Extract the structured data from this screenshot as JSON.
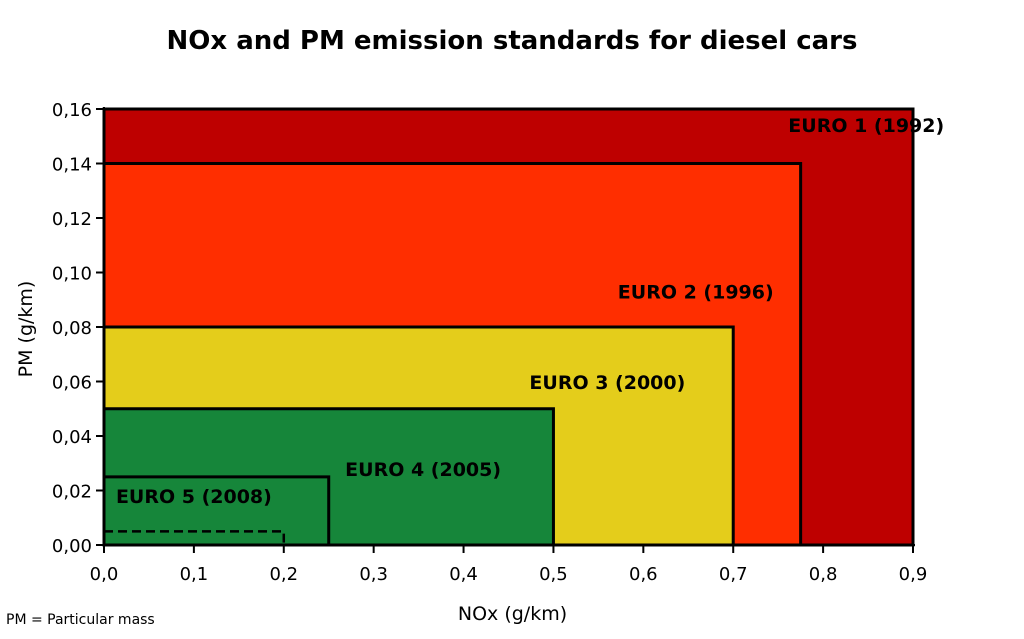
{
  "title": "NOx and PM emission standards for diesel cars",
  "footnote": "PM = Particular mass",
  "chart_data": {
    "type": "area",
    "title": "NOx and PM emission standards for diesel cars",
    "xlabel": "NOx (g/km)",
    "ylabel": "PM (g/km)",
    "xlim": [
      0,
      0.9
    ],
    "ylim": [
      0,
      0.16
    ],
    "x_ticks": [
      "0,0",
      "0,1",
      "0,2",
      "0,3",
      "0,4",
      "0,5",
      "0,6",
      "0,7",
      "0,8",
      "0,9"
    ],
    "y_ticks": [
      "0,00",
      "0,02",
      "0,04",
      "0,06",
      "0,08",
      "0,10",
      "0,12",
      "0,14",
      "0,16"
    ],
    "grid": false,
    "standards": [
      {
        "name": "EURO 1 (1992)",
        "nox": 0.9,
        "pm": 0.16,
        "color": "#BE0000"
      },
      {
        "name": "EURO 2 (1996)",
        "nox": 0.775,
        "pm": 0.14,
        "color": "#FF2E00"
      },
      {
        "name": "EURO 3 (2000)",
        "nox": 0.7,
        "pm": 0.08,
        "color": "#E4CD1B"
      },
      {
        "name": "EURO 4 (2005)",
        "nox": 0.5,
        "pm": 0.05,
        "color": "#16863A"
      },
      {
        "name": "EURO 5 (2008)",
        "nox": 0.25,
        "pm": 0.025,
        "color": "#16863A"
      }
    ],
    "dashed_limit": {
      "nox": 0.2,
      "pm": 0.005
    }
  }
}
